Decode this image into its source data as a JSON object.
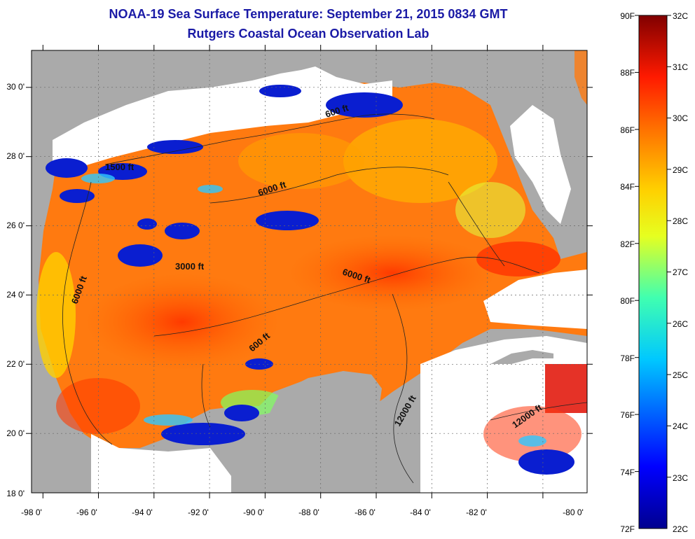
{
  "title": {
    "line1": "NOAA-19 Sea Surface Temperature:  September 21, 2015 0834 GMT",
    "line2": "Rutgers Coastal Ocean Observation Lab"
  },
  "axes": {
    "lon_labels": [
      "-98 0'",
      "-96 0'",
      "-94 0'",
      "-92 0'",
      "-90 0'",
      "-88 0'",
      "-86 0'",
      "-84 0'",
      "-82 0'",
      "-80 0'"
    ],
    "lat_labels": [
      "30 0'",
      "28 0'",
      "26 0'",
      "24 0'",
      "22 0'",
      "20 0'",
      "18 0'"
    ]
  },
  "contour_labels": [
    "600 ft",
    "1500 ft",
    "6000 ft",
    "3000 ft",
    "6000 ft",
    "6000 ft",
    "600 ft",
    "12000 ft",
    "12000 ft"
  ],
  "colorbar": {
    "fahrenheit": [
      "90F",
      "88F",
      "86F",
      "84F",
      "82F",
      "80F",
      "78F",
      "76F",
      "74F",
      "72F"
    ],
    "celsius": [
      "32C",
      "31C",
      "30C",
      "29C",
      "28C",
      "27C",
      "26C",
      "25C",
      "24C",
      "23C",
      "22C"
    ]
  },
  "colors": {
    "land": "#aaaaaa",
    "cloud": "#ffffff",
    "title": "#1a1aa6",
    "scale": [
      "#00008f",
      "#0000ff",
      "#0080ff",
      "#00ffff",
      "#80ff80",
      "#ffff00",
      "#ff8000",
      "#ff0000",
      "#800000"
    ]
  }
}
